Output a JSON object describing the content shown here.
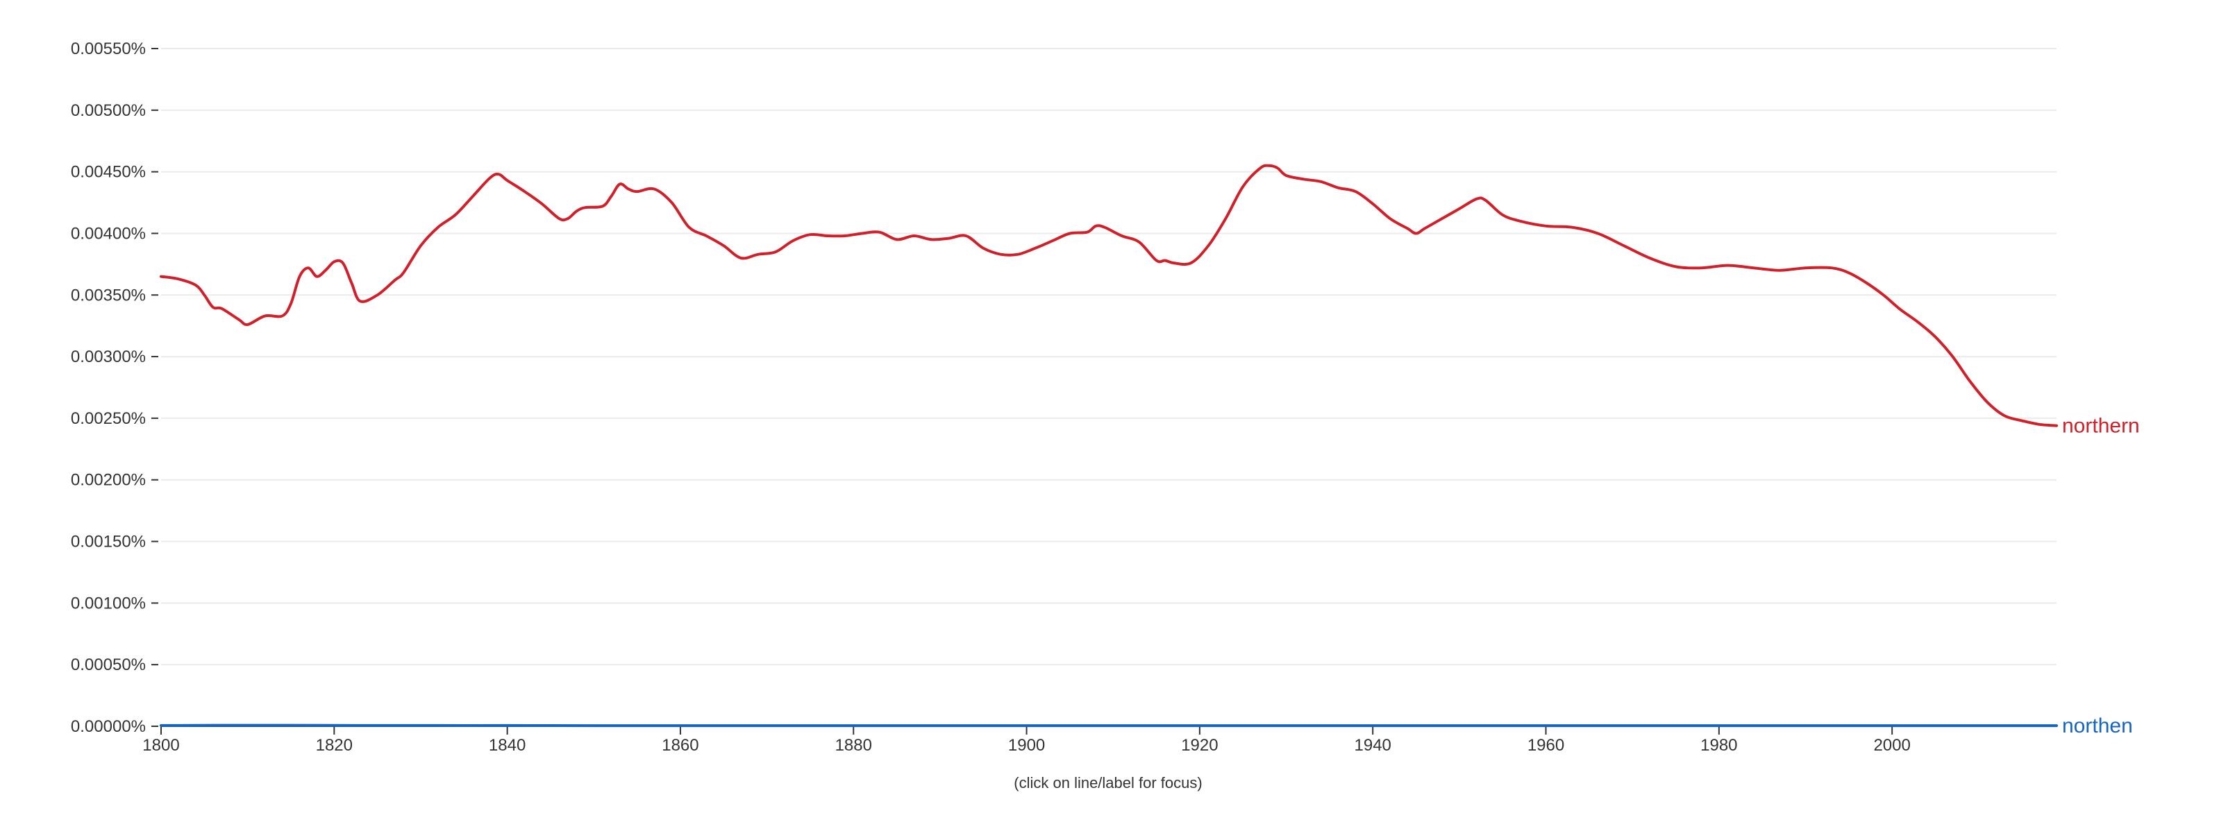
{
  "chart_data": {
    "type": "line",
    "title": "",
    "xlabel": "",
    "ylabel": "",
    "xlim": [
      1800,
      2019
    ],
    "ylim": [
      0,
      0.0055
    ],
    "x_ticks": [
      1800,
      1820,
      1840,
      1860,
      1880,
      1900,
      1920,
      1940,
      1960,
      1980,
      2000
    ],
    "y_ticks": [
      0,
      0.0005,
      0.001,
      0.0015,
      0.002,
      0.0025,
      0.003,
      0.0035,
      0.004,
      0.0045,
      0.005,
      0.0055
    ],
    "y_tick_labels": [
      "0.00000%",
      "0.00050%",
      "0.00100%",
      "0.00150%",
      "0.00200%",
      "0.00250%",
      "0.00300%",
      "0.00350%",
      "0.00400%",
      "0.00450%",
      "0.00500%",
      "0.00550%"
    ],
    "grid": true,
    "series": [
      {
        "name": "northern",
        "color": "#d0202a",
        "x": [
          1800,
          1802,
          1804,
          1805,
          1806,
          1807,
          1809,
          1810,
          1812,
          1814,
          1815,
          1816,
          1817,
          1818,
          1819,
          1820,
          1821,
          1822,
          1823,
          1825,
          1827,
          1828,
          1830,
          1832,
          1834,
          1836,
          1838,
          1839,
          1840,
          1842,
          1844,
          1846,
          1847,
          1848,
          1849,
          1851,
          1852,
          1853,
          1854,
          1855,
          1857,
          1859,
          1861,
          1863,
          1865,
          1867,
          1869,
          1871,
          1873,
          1875,
          1877,
          1879,
          1881,
          1883,
          1885,
          1887,
          1889,
          1891,
          1893,
          1895,
          1897,
          1899,
          1901,
          1903,
          1905,
          1907,
          1908,
          1909,
          1911,
          1913,
          1915,
          1916,
          1917,
          1919,
          1921,
          1923,
          1925,
          1927,
          1928,
          1929,
          1930,
          1932,
          1934,
          1936,
          1938,
          1940,
          1942,
          1944,
          1945,
          1946,
          1948,
          1950,
          1952,
          1953,
          1955,
          1957,
          1960,
          1963,
          1966,
          1969,
          1972,
          1975,
          1978,
          1981,
          1984,
          1987,
          1990,
          1993,
          1995,
          1997,
          1999,
          2001,
          2003,
          2005,
          2007,
          2009,
          2011,
          2013,
          2015,
          2017,
          2019
        ],
        "y": [
          0.00365,
          0.00363,
          0.00358,
          0.0035,
          0.0034,
          0.00339,
          0.0033,
          0.00326,
          0.00333,
          0.00333,
          0.00343,
          0.00365,
          0.00372,
          0.00365,
          0.0037,
          0.00377,
          0.00376,
          0.0036,
          0.00345,
          0.0035,
          0.00362,
          0.00368,
          0.0039,
          0.00405,
          0.00415,
          0.0043,
          0.00445,
          0.00448,
          0.00443,
          0.00434,
          0.00424,
          0.00412,
          0.00412,
          0.00418,
          0.00421,
          0.00422,
          0.0043,
          0.0044,
          0.00436,
          0.00434,
          0.00436,
          0.00425,
          0.00405,
          0.00398,
          0.0039,
          0.0038,
          0.00383,
          0.00385,
          0.00394,
          0.00399,
          0.00398,
          0.00398,
          0.004,
          0.00401,
          0.00395,
          0.00398,
          0.00395,
          0.00396,
          0.00398,
          0.00388,
          0.00383,
          0.00383,
          0.00388,
          0.00394,
          0.004,
          0.00401,
          0.00406,
          0.00405,
          0.00398,
          0.00393,
          0.00378,
          0.00378,
          0.00376,
          0.00376,
          0.0039,
          0.00412,
          0.00438,
          0.00453,
          0.00455,
          0.00453,
          0.00447,
          0.00444,
          0.00442,
          0.00437,
          0.00434,
          0.00424,
          0.00412,
          0.00404,
          0.004,
          0.00404,
          0.00412,
          0.0042,
          0.00428,
          0.00427,
          0.00415,
          0.0041,
          0.00406,
          0.00405,
          0.004,
          0.0039,
          0.0038,
          0.00373,
          0.00372,
          0.00374,
          0.00372,
          0.0037,
          0.00372,
          0.00372,
          0.00368,
          0.0036,
          0.0035,
          0.00338,
          0.00328,
          0.00316,
          0.003,
          0.0028,
          0.00263,
          0.00252,
          0.00248,
          0.00245,
          0.00244
        ]
      },
      {
        "name": "northen",
        "color": "#1565c0",
        "x": [
          1800,
          1810,
          1820,
          1830,
          1840,
          1850,
          1860,
          1870,
          1880,
          1890,
          1900,
          1910,
          1920,
          1930,
          1940,
          1950,
          1960,
          1970,
          1980,
          1990,
          2000,
          2010,
          2019
        ],
        "y": [
          6e-06,
          8e-06,
          7e-06,
          6e-06,
          6e-06,
          5e-06,
          5e-06,
          5e-06,
          5e-06,
          5e-06,
          5e-06,
          5e-06,
          5e-06,
          5e-06,
          5e-06,
          5e-06,
          5e-06,
          5e-06,
          5e-06,
          5e-06,
          5e-06,
          5e-06,
          5e-06
        ]
      }
    ]
  },
  "footer": {
    "hint": "(click on line/label for focus)"
  }
}
